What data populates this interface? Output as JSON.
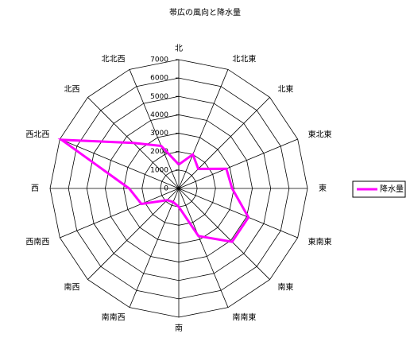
{
  "chart_data": {
    "type": "radar",
    "title": "帯広の風向と降水量",
    "categories": [
      "北",
      "北北東",
      "北東",
      "東北東",
      "東",
      "東南東",
      "南東",
      "南南東",
      "南",
      "南南西",
      "南西",
      "西南西",
      "西",
      "西北西",
      "北西",
      "北北西"
    ],
    "series": [
      {
        "name": "降水量",
        "color": "#ff00ff",
        "values": [
          1300,
          2000,
          1500,
          2800,
          2900,
          4100,
          4100,
          2800,
          1000,
          800,
          900,
          2200,
          2700,
          6900,
          3500,
          2500
        ]
      }
    ],
    "ylim": [
      0,
      7000
    ],
    "yticks": [
      0,
      1000,
      2000,
      3000,
      4000,
      5000,
      6000,
      7000
    ],
    "legend": "right"
  }
}
